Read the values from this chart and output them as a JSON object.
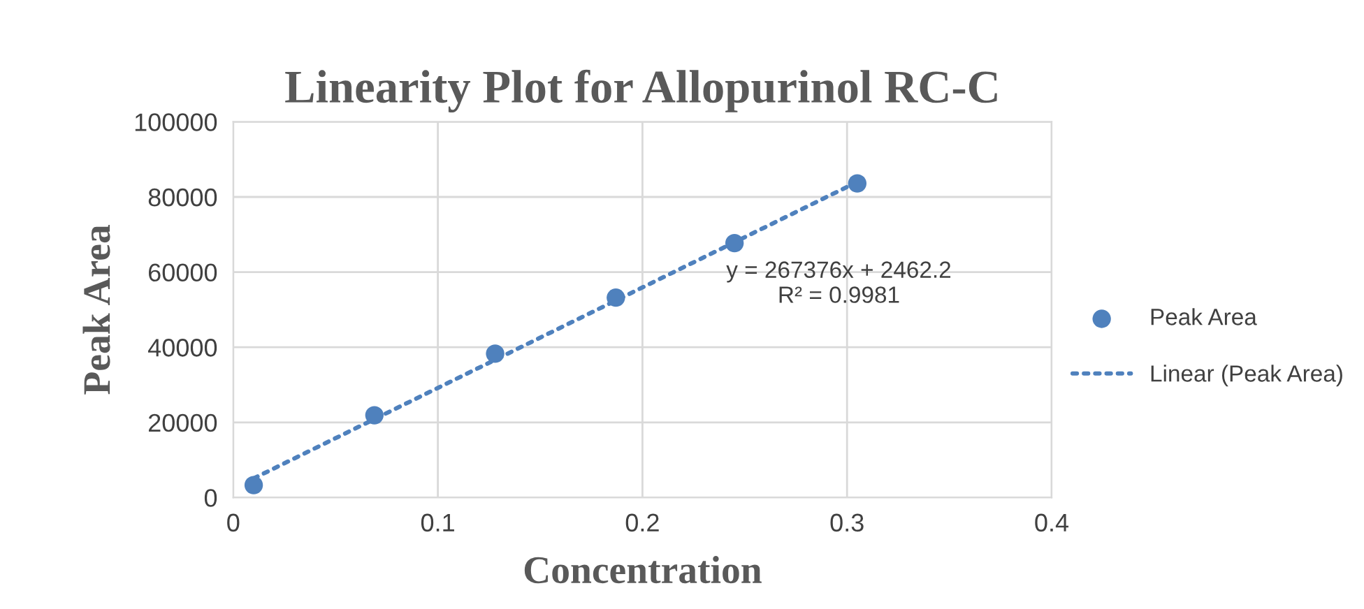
{
  "chart_data": {
    "type": "scatter",
    "title": "Linearity Plot for Allopurinol RC-C",
    "xlabel": "Concentration",
    "ylabel": "Peak Area",
    "xlim": [
      0,
      0.4
    ],
    "xticks": [
      0,
      0.1,
      0.2,
      0.3,
      0.4
    ],
    "ylim": [
      0,
      100000
    ],
    "yticks": [
      0,
      20000,
      40000,
      60000,
      80000,
      100000
    ],
    "grid": true,
    "legend": "right",
    "annotations": [
      "y = 267376x + 2462.2\nR² = 0.9981"
    ],
    "series": [
      {
        "name": "Peak Area",
        "marker": "circle",
        "color": "#4f81bd",
        "x": [
          0.01,
          0.069,
          0.128,
          0.187,
          0.245,
          0.305
        ],
        "values": [
          3300,
          21900,
          38300,
          53200,
          67700,
          83600
        ]
      },
      {
        "name": "Linear (Peak Area)",
        "type": "line",
        "color": "#4f81bd",
        "line_style": "dotted",
        "marker": "none",
        "x": [
          0.01,
          0.305
        ],
        "values": [
          5100,
          84000
        ]
      }
    ]
  }
}
